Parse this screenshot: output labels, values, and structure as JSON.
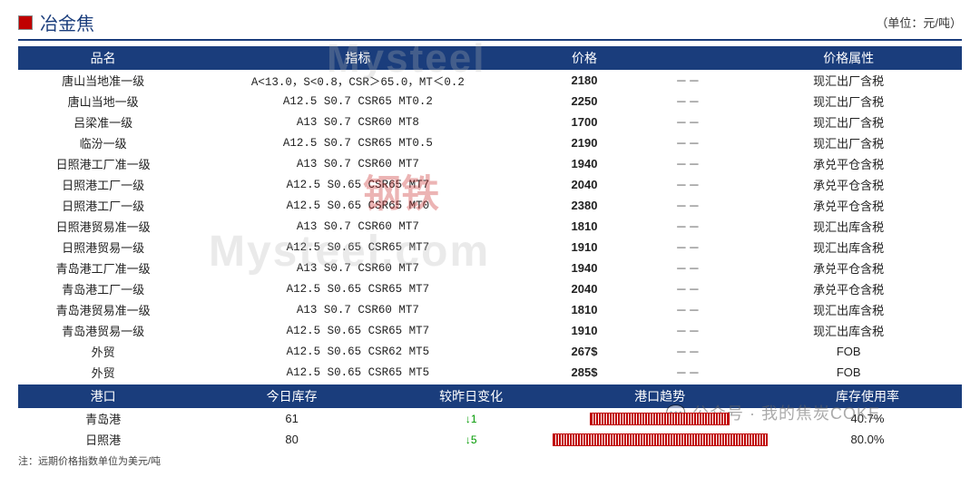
{
  "title": "冶金焦",
  "unit": "（单位：元/吨）",
  "columns": [
    "品名",
    "指标",
    "价格",
    "",
    "价格属性"
  ],
  "col_widths": [
    "18%",
    "36%",
    "12%",
    "10%",
    "24%"
  ],
  "header_bg": "#1a3d7c",
  "header_color": "#ffffff",
  "accent_red": "#c00000",
  "rows": [
    {
      "name": "唐山当地准一级",
      "spec": "A<13.0，S<0.8，CSR＞65.0，MT＜0.2",
      "price": "2180",
      "change": "－－",
      "attr": "现汇出厂含税"
    },
    {
      "name": "唐山当地一级",
      "spec": "A12.5   S0.7   CSR65 MT0.2",
      "price": "2250",
      "change": "－－",
      "attr": "现汇出厂含税"
    },
    {
      "name": "吕梁准一级",
      "spec": "A13   S0.7   CSR60  MT8",
      "price": "1700",
      "change": "－－",
      "attr": "现汇出厂含税"
    },
    {
      "name": "临汾一级",
      "spec": "A12.5  S0.7  CSR65  MT0.5",
      "price": "2190",
      "change": "－－",
      "attr": "现汇出厂含税"
    },
    {
      "name": "日照港工厂准一级",
      "spec": "A13   S0.7   CSR60  MT7",
      "price": "1940",
      "change": "－－",
      "attr": "承兑平仓含税"
    },
    {
      "name": "日照港工厂一级",
      "spec": "A12.5  S0.65  CSR65  MT7",
      "price": "2040",
      "change": "－－",
      "attr": "承兑平仓含税"
    },
    {
      "name": "日照港工厂一级",
      "spec": "A12.5  S0.65  CSR65  MT0",
      "price": "2380",
      "change": "－－",
      "attr": "承兑平仓含税"
    },
    {
      "name": "日照港贸易准一级",
      "spec": "A13   S0.7   CSR60  MT7",
      "price": "1810",
      "change": "－－",
      "attr": "现汇出库含税"
    },
    {
      "name": "日照港贸易一级",
      "spec": "A12.5  S0.65  CSR65  MT7",
      "price": "1910",
      "change": "－－",
      "attr": "现汇出库含税"
    },
    {
      "name": "青岛港工厂准一级",
      "spec": "A13   S0.7   CSR60  MT7",
      "price": "1940",
      "change": "－－",
      "attr": "承兑平仓含税"
    },
    {
      "name": "青岛港工厂一级",
      "spec": "A12.5  S0.65  CSR65  MT7",
      "price": "2040",
      "change": "－－",
      "attr": "承兑平仓含税"
    },
    {
      "name": "青岛港贸易准一级",
      "spec": "A13   S0.7  CSR60 MT7",
      "price": "1810",
      "change": "－－",
      "attr": "现汇出库含税"
    },
    {
      "name": "青岛港贸易一级",
      "spec": "A12.5  S0.65  CSR65  MT7",
      "price": "1910",
      "change": "－－",
      "attr": "现汇出库含税"
    },
    {
      "name": "外贸",
      "spec": "A12.5  S0.65  CSR62  MT5",
      "price": "267$",
      "change": "－－",
      "attr": "FOB"
    },
    {
      "name": "外贸",
      "spec": "A12.5  S0.65  CSR65  MT5",
      "price": "285$",
      "change": "－－",
      "attr": "FOB"
    }
  ],
  "port_columns": [
    "港口",
    "今日库存",
    "较昨日变化",
    "港口趋势",
    "库存使用率"
  ],
  "port_col_widths": [
    "18%",
    "22%",
    "16%",
    "24%",
    "20%"
  ],
  "ports": [
    {
      "name": "青岛港",
      "stock": "61",
      "delta": "↓1",
      "trend_width": "64%",
      "usage": "40.7%"
    },
    {
      "name": "日照港",
      "stock": "80",
      "delta": "↓5",
      "trend_width": "98%",
      "usage": "80.0%"
    }
  ],
  "footnote": "注：远期价格指数单位为美元/吨",
  "watermark1": "Mysteel",
  "watermark2": "Mysteel.com",
  "watermark_red": "钢铁",
  "chat_badge": "💬 公众号 · 我的焦炭COKE"
}
